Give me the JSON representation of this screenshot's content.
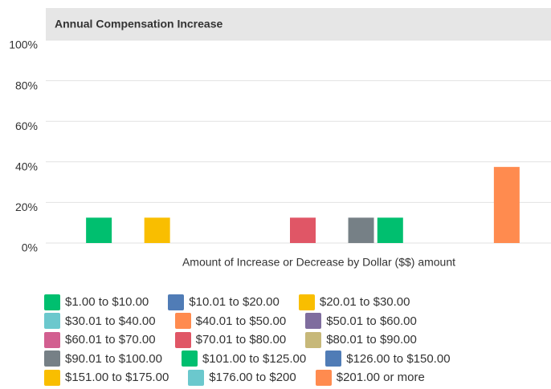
{
  "chart_data": {
    "type": "bar",
    "title": "Annual Compensation Increase",
    "x_label": "Amount of Increase or Decrease by Dollar ($$) amount",
    "categories": [
      "$1.00 to $10.00",
      "$10.01 to $20.00",
      "$20.01 to $30.00",
      "$30.01 to $40.00",
      "$40.01 to $50.00",
      "$50.01 to $60.00",
      "$60.01 to $70.00",
      "$70.01 to $80.00",
      "$80.01 to $90.00",
      "$90.01 to $100.00",
      "$101.00 to $125.00",
      "$126.00 to $150.00",
      "$151.00 to $175.00",
      "$176.00 to $200",
      "$201.00 or more"
    ],
    "values": [
      12.5,
      0,
      12.5,
      0,
      0,
      0,
      0,
      12.5,
      0,
      12.5,
      12.5,
      0,
      0,
      0,
      37.5
    ],
    "colors": [
      "#00bf6f",
      "#507cb6",
      "#f9be00",
      "#6bc8cd",
      "#ff8b4f",
      "#7f6d9e",
      "#d25f90",
      "#e05666",
      "#c7b879",
      "#768086",
      "#00bf6f",
      "#507cb6",
      "#f9be00",
      "#6bc8cd",
      "#ff8b4f"
    ],
    "ylim": [
      0,
      100
    ],
    "yticks": [
      {
        "value": 0,
        "label": "0%"
      },
      {
        "value": 20,
        "label": "20%"
      },
      {
        "value": 40,
        "label": "40%"
      },
      {
        "value": 60,
        "label": "60%"
      },
      {
        "value": 80,
        "label": "80%"
      },
      {
        "value": 100,
        "label": "100%"
      }
    ],
    "grid": true
  }
}
